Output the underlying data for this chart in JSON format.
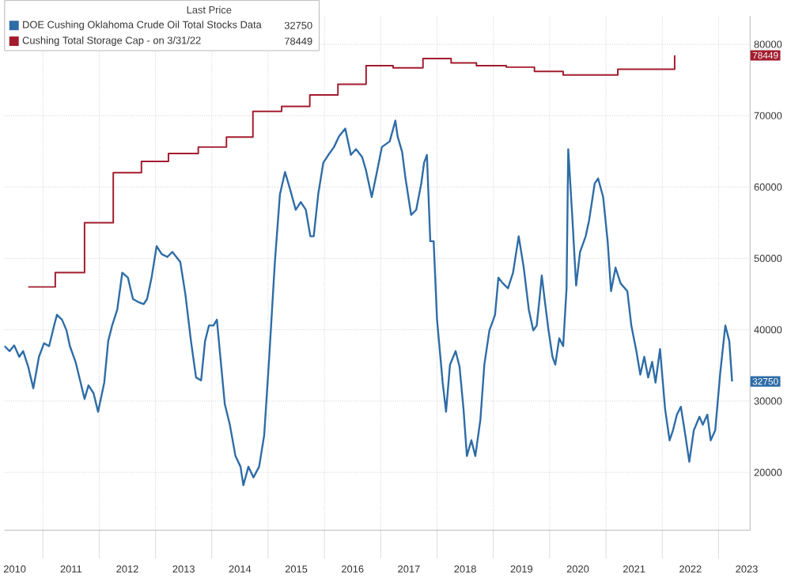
{
  "chart_data": {
    "type": "line",
    "legend_title": "Last Price",
    "legend": "top left",
    "grid": true,
    "xlim": [
      2010.32,
      2023.56
    ],
    "ylim": [
      11900,
      84000
    ],
    "xticks": [
      {
        "value": 2011,
        "label": null
      },
      {
        "value": 2012,
        "label": null
      },
      {
        "value": 2013,
        "label": null
      },
      {
        "value": 2014,
        "label": null
      },
      {
        "value": 2015,
        "label": null
      },
      {
        "value": 2016,
        "label": null
      },
      {
        "value": 2017,
        "label": null
      },
      {
        "value": 2018,
        "label": null
      },
      {
        "value": 2019,
        "label": null
      },
      {
        "value": 2020,
        "label": null
      },
      {
        "value": 2021,
        "label": null
      },
      {
        "value": 2022,
        "label": null
      },
      {
        "value": 2023,
        "label": null
      },
      {
        "value": 2010.5,
        "label": "2010"
      },
      {
        "value": 2011.5,
        "label": "2011"
      },
      {
        "value": 2012.5,
        "label": "2012"
      },
      {
        "value": 2013.5,
        "label": "2013"
      },
      {
        "value": 2014.5,
        "label": "2014"
      },
      {
        "value": 2015.5,
        "label": "2015"
      },
      {
        "value": 2016.5,
        "label": "2016"
      },
      {
        "value": 2017.5,
        "label": "2017"
      },
      {
        "value": 2018.5,
        "label": "2018"
      },
      {
        "value": 2019.5,
        "label": "2019"
      },
      {
        "value": 2020.5,
        "label": "2020"
      },
      {
        "value": 2021.5,
        "label": "2021"
      },
      {
        "value": 2022.5,
        "label": "2022"
      },
      {
        "value": 2023.5,
        "label": "2023"
      }
    ],
    "yticks": [
      20000,
      30000,
      40000,
      50000,
      60000,
      70000,
      80000
    ],
    "series": [
      {
        "name": "DOE Cushing Oklahoma Crude Oil Total Stocks Data",
        "color": "#2e6ca6",
        "x": [
          2010.32,
          2010.41,
          2010.49,
          2010.58,
          2010.65,
          2010.74,
          2010.83,
          2010.93,
          2011.02,
          2011.11,
          2011.2,
          2011.25,
          2011.34,
          2011.42,
          2011.48,
          2011.58,
          2011.67,
          2011.74,
          2011.81,
          2011.9,
          2011.98,
          2012.09,
          2012.16,
          2012.23,
          2012.32,
          2012.41,
          2012.51,
          2012.6,
          2012.69,
          2012.79,
          2012.85,
          2012.93,
          2013.02,
          2013.11,
          2013.21,
          2013.3,
          2013.44,
          2013.53,
          2013.63,
          2013.72,
          2013.81,
          2013.88,
          2013.95,
          2014.03,
          2014.09,
          2014.16,
          2014.23,
          2014.32,
          2014.42,
          2014.51,
          2014.56,
          2014.65,
          2014.74,
          2014.84,
          2014.93,
          2015.02,
          2015.12,
          2015.21,
          2015.3,
          2015.39,
          2015.49,
          2015.58,
          2015.67,
          2015.75,
          2015.81,
          2015.89,
          2015.98,
          2016.07,
          2016.17,
          2016.26,
          2016.37,
          2016.47,
          2016.56,
          2016.67,
          2016.74,
          2016.84,
          2016.93,
          2017.02,
          2017.16,
          2017.26,
          2017.3,
          2017.38,
          2017.44,
          2017.54,
          2017.63,
          2017.72,
          2017.77,
          2017.82,
          2017.88,
          2017.94,
          2018.0,
          2018.1,
          2018.16,
          2018.23,
          2018.33,
          2018.4,
          2018.47,
          2018.53,
          2018.61,
          2018.68,
          2018.77,
          2018.84,
          2018.93,
          2019.03,
          2019.09,
          2019.17,
          2019.26,
          2019.35,
          2019.45,
          2019.54,
          2019.63,
          2019.71,
          2019.77,
          2019.82,
          2019.86,
          2019.91,
          2019.98,
          2020.05,
          2020.1,
          2020.17,
          2020.24,
          2020.3,
          2020.33,
          2020.4,
          2020.47,
          2020.54,
          2020.64,
          2020.7,
          2020.8,
          2020.86,
          2020.95,
          2021.03,
          2021.09,
          2021.17,
          2021.26,
          2021.38,
          2021.45,
          2021.54,
          2021.61,
          2021.68,
          2021.75,
          2021.82,
          2021.88,
          2021.96,
          2022.05,
          2022.13,
          2022.19,
          2022.26,
          2022.33,
          2022.41,
          2022.48,
          2022.56,
          2022.66,
          2022.72,
          2022.8,
          2022.86,
          2022.94,
          2023.03,
          2023.12,
          2023.19,
          2023.24
        ],
        "values": [
          37700,
          37000,
          37800,
          36200,
          37000,
          34800,
          31800,
          36200,
          38100,
          37700,
          40600,
          42100,
          41400,
          39900,
          37700,
          35500,
          32600,
          30300,
          32200,
          31100,
          28500,
          32600,
          38400,
          40600,
          42800,
          48000,
          47300,
          44300,
          43900,
          43600,
          44300,
          47300,
          51700,
          50600,
          50200,
          50900,
          49500,
          45000,
          38400,
          33300,
          32900,
          38400,
          40600,
          40600,
          41400,
          35500,
          29600,
          26700,
          22300,
          20800,
          18200,
          20800,
          19300,
          20800,
          25200,
          36200,
          49500,
          59000,
          62100,
          59700,
          56800,
          57900,
          56800,
          53100,
          53100,
          59000,
          63400,
          64500,
          65600,
          67100,
          68200,
          64500,
          65300,
          64200,
          62300,
          58600,
          62000,
          65600,
          66400,
          69300,
          67100,
          64900,
          61200,
          56100,
          56800,
          60500,
          63400,
          64500,
          52400,
          52400,
          41400,
          32600,
          28500,
          35100,
          37000,
          34800,
          28900,
          22300,
          24500,
          22300,
          27400,
          35100,
          39900,
          42100,
          47300,
          46500,
          45800,
          48000,
          53100,
          48700,
          42800,
          39900,
          40600,
          44300,
          47600,
          44300,
          39900,
          36200,
          35100,
          38800,
          37700,
          45800,
          65300,
          56100,
          46200,
          50900,
          53100,
          55300,
          60500,
          61200,
          58600,
          52400,
          45400,
          48700,
          46500,
          45400,
          40600,
          37000,
          33700,
          36200,
          33300,
          35500,
          32600,
          37300,
          28900,
          24500,
          25900,
          28100,
          29200,
          25200,
          21500,
          25900,
          27800,
          26700,
          28100,
          24500,
          25900,
          34000,
          40600,
          38400,
          32750
        ]
      },
      {
        "name": "Cushing Total Storage Cap -  on 3/31/22",
        "color": "#a31c2d",
        "type": "step",
        "x": [
          2010.74,
          2011.22,
          2011.74,
          2012.25,
          2012.75,
          2013.23,
          2013.76,
          2014.26,
          2014.73,
          2015.24,
          2015.74,
          2016.24,
          2016.74,
          2017.22,
          2017.75,
          2018.25,
          2018.7,
          2019.23,
          2019.73,
          2020.24,
          2021.21,
          2022.22
        ],
        "values": [
          46000,
          48000,
          55000,
          62000,
          63600,
          64700,
          65600,
          67000,
          70600,
          71300,
          72900,
          74400,
          77000,
          76700,
          78000,
          77400,
          77000,
          76800,
          76200,
          75700,
          76500,
          78449
        ]
      }
    ],
    "annotations": [
      "32750",
      "78449",
      "32750",
      "78449"
    ]
  }
}
